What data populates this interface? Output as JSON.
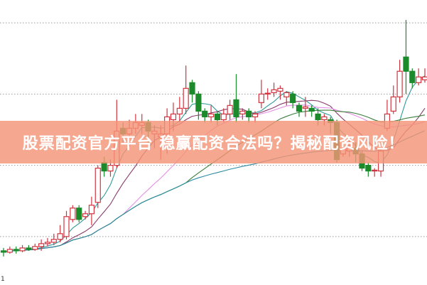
{
  "banner": {
    "text": "股票配资官方平台 稳赢配资合法吗？揭秘配资风险！",
    "color": "#f49476"
  },
  "corner_label": "1",
  "chart_data": {
    "type": "candlestick",
    "title": "",
    "xlabel": "",
    "ylabel": "",
    "ylim": [
      0,
      100
    ],
    "gridlines_y": [
      17,
      42,
      67,
      92
    ],
    "grid": "horizontal dotted",
    "up_color": "#d2343f",
    "down_color": "#1a8a2a",
    "candles": [
      [
        12,
        11.5,
        13,
        10
      ],
      [
        11.5,
        12.5,
        13.5,
        11
      ],
      [
        12.5,
        12,
        13.5,
        11
      ],
      [
        12,
        13,
        14,
        11.5
      ],
      [
        13,
        12.5,
        14,
        12
      ],
      [
        12.5,
        13.5,
        14.5,
        12
      ],
      [
        13.5,
        14.5,
        16,
        12
      ],
      [
        14.5,
        15,
        16.5,
        13.5
      ],
      [
        15,
        16,
        18,
        14
      ],
      [
        16,
        18,
        21,
        15
      ],
      [
        17,
        24,
        26,
        16
      ],
      [
        23,
        27,
        28,
        22
      ],
      [
        27,
        23,
        28,
        22
      ],
      [
        24,
        25,
        26,
        23
      ],
      [
        25,
        28,
        31,
        21
      ],
      [
        29,
        41,
        42,
        27
      ],
      [
        43,
        40,
        45,
        38
      ],
      [
        40,
        42,
        44,
        38
      ],
      [
        42,
        54,
        65,
        41
      ],
      [
        55,
        53,
        57,
        50
      ],
      [
        53,
        55,
        58,
        52
      ],
      [
        55,
        57,
        60,
        53
      ],
      [
        56,
        57,
        60,
        53
      ],
      [
        57,
        54,
        58,
        50
      ],
      [
        53,
        54,
        56,
        48
      ],
      [
        52,
        53,
        56,
        44
      ],
      [
        53,
        59,
        62,
        46
      ],
      [
        58,
        60,
        64,
        54
      ],
      [
        60,
        62,
        66,
        57
      ],
      [
        62,
        69,
        77,
        60
      ],
      [
        71,
        67,
        72,
        64
      ],
      [
        67,
        61,
        68,
        58
      ],
      [
        61,
        59,
        62,
        57
      ],
      [
        59,
        60,
        63,
        57
      ],
      [
        60,
        58,
        61,
        56
      ],
      [
        58,
        60,
        62,
        57
      ],
      [
        60,
        63,
        65,
        58
      ],
      [
        65,
        59,
        74,
        57
      ],
      [
        60,
        61,
        62,
        58
      ],
      [
        61,
        59,
        62,
        57
      ],
      [
        59,
        60,
        61,
        57
      ],
      [
        64,
        67,
        72,
        62
      ],
      [
        67,
        67.3,
        69,
        65
      ],
      [
        67.5,
        68.5,
        71,
        66
      ],
      [
        68,
        69,
        70,
        65
      ],
      [
        66,
        67.5,
        68,
        63
      ],
      [
        67,
        64,
        68,
        62
      ],
      [
        63,
        61,
        64,
        59
      ],
      [
        62,
        62.5,
        66,
        59
      ],
      [
        62,
        61,
        63,
        59
      ],
      [
        60,
        58,
        62,
        56
      ],
      [
        58,
        59,
        60,
        56
      ],
      [
        58,
        57,
        59,
        53
      ],
      [
        57,
        44,
        58,
        43
      ],
      [
        46,
        48,
        50,
        45
      ],
      [
        47,
        49,
        51,
        45
      ],
      [
        48,
        46,
        50,
        43
      ],
      [
        46,
        41,
        47,
        40
      ],
      [
        42,
        40,
        43,
        38
      ],
      [
        40,
        40.3,
        41,
        38
      ],
      [
        40,
        47,
        48,
        38
      ],
      [
        55,
        60,
        65,
        54
      ],
      [
        61,
        66,
        70,
        60
      ],
      [
        66,
        75,
        79,
        64
      ],
      [
        80,
        75,
        93,
        67
      ],
      [
        75,
        71,
        76,
        69
      ],
      [
        71,
        73,
        76,
        70
      ],
      [
        72,
        73,
        76,
        71
      ]
    ],
    "candle_fields": [
      "open",
      "close",
      "high",
      "low"
    ],
    "moving_averages": [
      {
        "period": 5,
        "color": "#2f9a9a"
      },
      {
        "period": 10,
        "color": "#8a3a6a"
      },
      {
        "period": 20,
        "color": "#e48ee4"
      },
      {
        "period": 30,
        "color": "#3a7f3a"
      },
      {
        "period": 60,
        "color": "#2a8aa2"
      }
    ]
  }
}
